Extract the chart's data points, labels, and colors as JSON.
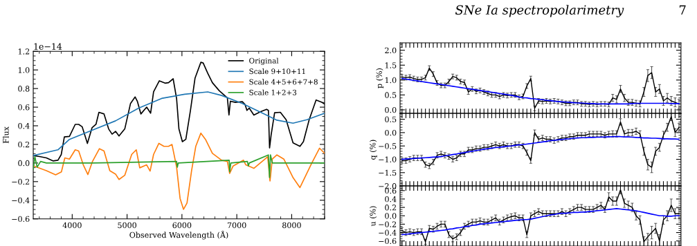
{
  "chart_data": [
    {
      "type": "line",
      "xlabel": "Observed Wavelength (Å)",
      "ylabel": "Flux",
      "xlim": [
        3290,
        8600
      ],
      "ylim": [
        -0.6,
        1.2
      ],
      "xticks": [
        4000,
        5000,
        6000,
        7000,
        8000
      ],
      "yticks": [
        -0.6,
        -0.4,
        -0.2,
        {
          "value": 0,
          "label": "0.0"
        },
        0.2,
        0.4,
        0.6,
        0.8,
        {
          "value": 1,
          "label": "1.0"
        },
        1.2
      ],
      "grid": false,
      "legend": "top right",
      "marker": "none",
      "line_style": "solid",
      "annotations": [
        "1e−14",
        "SNe Ia spectropolarimetry",
        "7"
      ],
      "series": [
        {
          "name": "Original",
          "color": "#000000",
          "x": [
            3290,
            3403,
            3530,
            3655,
            3740,
            3800,
            3857,
            3950,
            4055,
            4118,
            4181,
            4277,
            4361,
            4433,
            4487,
            4580,
            4664,
            4727,
            4790,
            4853,
            4958,
            5063,
            5147,
            5189,
            5252,
            5357,
            5429,
            5483,
            5588,
            5693,
            5756,
            5840,
            5903,
            5945,
            6008,
            6071,
            6155,
            6239,
            6345,
            6387,
            6471,
            6555,
            6681,
            6828,
            6857,
            6883,
            6975,
            7101,
            7151,
            7185,
            7227,
            7311,
            7437,
            7542,
            7576,
            7597,
            7626,
            7689,
            7794,
            7899,
            8025,
            8151,
            8214,
            8319,
            8445,
            8550,
            8600
          ],
          "values": [
            0.08,
            0.07,
            0.055,
            0.022,
            0.03,
            0.09,
            0.28,
            0.286,
            0.415,
            0.415,
            0.39,
            0.21,
            0.378,
            0.415,
            0.545,
            0.527,
            0.366,
            0.31,
            0.34,
            0.29,
            0.366,
            0.64,
            0.71,
            0.66,
            0.527,
            0.6,
            0.535,
            0.764,
            0.883,
            0.858,
            0.863,
            0.905,
            0.69,
            0.366,
            0.229,
            0.254,
            0.565,
            0.913,
            1.082,
            1.075,
            0.963,
            0.863,
            0.776,
            0.7,
            0.515,
            0.664,
            0.652,
            0.659,
            0.627,
            0.565,
            0.59,
            0.515,
            0.552,
            0.577,
            0.565,
            0.162,
            0.303,
            0.54,
            0.545,
            0.465,
            0.216,
            0.179,
            0.229,
            0.465,
            0.677,
            0.652,
            0.634
          ]
        },
        {
          "name": "Scale 9+10+11",
          "color": "#1f77b4",
          "x": [
            3290,
            3740,
            3950,
            4370,
            4790,
            5210,
            5630,
            6050,
            6471,
            6723,
            7101,
            7521,
            7731,
            8025,
            8277,
            8600
          ],
          "values": [
            0.08,
            0.142,
            0.254,
            0.353,
            0.453,
            0.59,
            0.694,
            0.739,
            0.764,
            0.726,
            0.639,
            0.52,
            0.46,
            0.428,
            0.465,
            0.535
          ]
        },
        {
          "name": "Scale 4+5+6+7+8",
          "color": "#ff7f0e",
          "x": [
            3290,
            3530,
            3698,
            3803,
            3866,
            3950,
            4055,
            4118,
            4202,
            4286,
            4370,
            4496,
            4580,
            4685,
            4790,
            4853,
            4958,
            5084,
            5168,
            5231,
            5357,
            5420,
            5483,
            5580,
            5672,
            5756,
            5819,
            5903,
            5966,
            6029,
            6092,
            6176,
            6252,
            6345,
            6429,
            6555,
            6723,
            6828,
            6870,
            6933,
            7122,
            7164,
            7311,
            7563,
            7605,
            7647,
            7731,
            7857,
            8025,
            8151,
            8361,
            8508,
            8600
          ],
          "values": [
            -0.03,
            -0.082,
            -0.127,
            -0.095,
            0.055,
            0.042,
            0.142,
            0.129,
            -0.02,
            -0.124,
            0.017,
            0.154,
            0.129,
            -0.082,
            -0.119,
            -0.177,
            -0.132,
            0.092,
            0.142,
            -0.052,
            -0.02,
            -0.087,
            0.092,
            0.211,
            0.179,
            0.179,
            0.199,
            -0.045,
            -0.381,
            -0.498,
            -0.43,
            -0.082,
            0.179,
            0.321,
            0.254,
            0.104,
            0.03,
            0.017,
            -0.112,
            -0.032,
            0.03,
            -0.02,
            -0.057,
            0.067,
            -0.194,
            0.042,
            0.087,
            0.042,
            -0.157,
            -0.264,
            -0.007,
            0.159,
            0.104
          ]
        },
        {
          "name": "Scale 1+2+3",
          "color": "#2ca02c",
          "x": [
            3290,
            3320,
            3361,
            3424,
            3530,
            4370,
            5903,
            5916,
            5933,
            6861,
            6870,
            6891,
            7193,
            7210,
            7227,
            7576,
            7597,
            7614,
            7647,
            8600
          ],
          "values": [
            -0.07,
            0.067,
            -0.045,
            0.017,
            0.0,
            0.0,
            0.017,
            -0.045,
            0.0,
            0.03,
            -0.094,
            0.0,
            0.017,
            -0.032,
            0.0,
            0.087,
            -0.157,
            0.087,
            0.0,
            0.0
          ]
        }
      ]
    },
    {
      "type": "line",
      "ylabel": "p (%)",
      "ylim": [
        -0.12,
        2.25
      ],
      "yticks": [
        {
          "value": 0,
          "label": "0.0"
        },
        0.5,
        {
          "value": 1,
          "label": "1.0"
        },
        1.5,
        {
          "value": 2,
          "label": "2.0"
        }
      ],
      "tick_labels": "y",
      "grid": false,
      "marker": "none",
      "line_style": "solid",
      "categories": [
        null,
        null,
        null,
        null,
        null,
        null,
        null,
        null,
        null,
        null,
        null,
        null,
        null,
        null,
        null,
        null,
        null,
        null,
        null,
        null,
        null,
        null,
        null,
        null,
        null,
        null,
        null,
        null,
        null,
        null,
        null,
        null,
        null,
        null,
        null,
        null,
        null,
        null,
        null,
        null,
        null,
        null,
        null,
        null,
        null,
        null,
        null,
        null,
        null,
        null,
        null,
        null,
        null,
        null,
        null,
        null,
        null,
        null,
        null,
        null,
        null,
        null,
        null,
        null,
        null,
        null,
        null,
        null,
        null,
        null,
        null,
        null
      ],
      "series": [
        {
          "color": "#000000",
          "values": [
            1.1,
            1.08,
            1.1,
            1.05,
            1.02,
            1.02,
            1.08,
            1.4,
            1.2,
            0.9,
            0.82,
            0.82,
            0.95,
            1.12,
            1.08,
            0.95,
            0.92,
            0.6,
            0.7,
            0.62,
            0.65,
            0.6,
            0.55,
            0.5,
            0.5,
            0.45,
            0.5,
            0.48,
            0.5,
            0.5,
            0.42,
            0.45,
            0.8,
            1.05,
            0.05,
            0.3,
            0.28,
            0.3,
            0.28,
            0.3,
            0.28,
            0.25,
            0.22,
            0.22,
            0.25,
            0.25,
            0.2,
            0.2,
            0.18,
            0.2,
            0.18,
            0.2,
            0.2,
            0.18,
            0.4,
            0.35,
            0.7,
            0.4,
            0.25,
            0.25,
            0.22,
            0.2,
            0.6,
            1.15,
            1.25,
            0.6,
            0.7,
            0.3,
            0.4,
            0.3,
            0.25,
            0.2
          ],
          "errors": [
            0.08,
            0.08,
            0.08,
            0.08,
            0.08,
            0.08,
            0.08,
            0.08,
            0.08,
            0.08,
            0.08,
            0.08,
            0.08,
            0.08,
            0.08,
            0.08,
            0.08,
            0.08,
            0.08,
            0.08,
            0.08,
            0.08,
            0.08,
            0.08,
            0.08,
            0.08,
            0.08,
            0.08,
            0.08,
            0.08,
            0.08,
            0.08,
            0.08,
            0.08,
            0.08,
            0.08,
            0.08,
            0.08,
            0.08,
            0.08,
            0.08,
            0.08,
            0.08,
            0.08,
            0.08,
            0.08,
            0.08,
            0.08,
            0.08,
            0.08,
            0.08,
            0.08,
            0.08,
            0.08,
            0.12,
            0.12,
            0.12,
            0.12,
            0.1,
            0.1,
            0.1,
            0.1,
            0.15,
            0.2,
            0.2,
            0.15,
            0.15,
            0.15,
            0.15,
            0.15,
            0.15,
            0.15
          ]
        },
        {
          "color": "#0000ff",
          "values": [
            1.05,
            1.03,
            1.01,
            0.99,
            0.97,
            0.95,
            0.93,
            0.91,
            0.89,
            0.87,
            0.85,
            0.83,
            0.81,
            0.79,
            0.77,
            0.75,
            0.73,
            0.71,
            0.69,
            0.67,
            0.65,
            0.63,
            0.61,
            0.59,
            0.57,
            0.55,
            0.53,
            0.51,
            0.49,
            0.46,
            0.43,
            0.41,
            0.4,
            0.38,
            0.37,
            0.35,
            0.34,
            0.32,
            0.31,
            0.29,
            0.28,
            0.27,
            0.26,
            0.25,
            0.24,
            0.23,
            0.23,
            0.22,
            0.21,
            0.21,
            0.2,
            0.2,
            0.2,
            0.2,
            0.2,
            0.2,
            0.2,
            0.2,
            0.2,
            0.21,
            0.22,
            0.22,
            0.22,
            0.22,
            0.22,
            0.22,
            0.22,
            0.22,
            0.22,
            0.21,
            0.21,
            0.21
          ]
        }
      ]
    },
    {
      "type": "line",
      "ylabel": "q (%)",
      "ylim": [
        -2.0,
        0.72
      ],
      "yticks": [
        {
          "value": -2,
          "label": "−2.0"
        },
        -1.5,
        {
          "value": -1,
          "label": "−1.0"
        },
        -0.5,
        {
          "value": 0,
          "label": "0.0"
        },
        0.5
      ],
      "tick_labels": "y",
      "grid": false,
      "marker": "none",
      "line_style": "solid",
      "categories": [
        null,
        null,
        null,
        null,
        null,
        null,
        null,
        null,
        null,
        null,
        null,
        null,
        null,
        null,
        null,
        null,
        null,
        null,
        null,
        null,
        null,
        null,
        null,
        null,
        null,
        null,
        null,
        null,
        null,
        null,
        null,
        null,
        null,
        null,
        null,
        null,
        null,
        null,
        null,
        null,
        null,
        null,
        null,
        null,
        null,
        null,
        null,
        null,
        null,
        null,
        null,
        null,
        null,
        null,
        null,
        null,
        null,
        null,
        null,
        null,
        null,
        null,
        null,
        null,
        null,
        null,
        null,
        null,
        null,
        null,
        null,
        null
      ],
      "series": [
        {
          "color": "#000000",
          "values": [
            -1.05,
            -1.05,
            -1.0,
            -0.95,
            -0.95,
            -0.95,
            -1.2,
            -1.25,
            -1.1,
            -0.85,
            -0.8,
            -0.85,
            -0.9,
            -1.0,
            -0.95,
            -0.8,
            -0.8,
            -0.65,
            -0.65,
            -0.6,
            -0.6,
            -0.55,
            -0.55,
            -0.5,
            -0.45,
            -0.5,
            -0.45,
            -0.5,
            -0.5,
            -0.45,
            -0.45,
            -0.5,
            -0.75,
            -1.05,
            0.0,
            -0.25,
            -0.2,
            -0.25,
            -0.25,
            -0.3,
            -0.25,
            -0.2,
            -0.2,
            -0.15,
            -0.15,
            -0.1,
            -0.1,
            -0.1,
            -0.05,
            -0.05,
            -0.05,
            -0.05,
            -0.1,
            -0.05,
            -0.05,
            -0.05,
            0.4,
            -0.05,
            0.0,
            0.0,
            0.05,
            -0.05,
            -0.7,
            -1.2,
            -1.3,
            -0.7,
            -0.55,
            -0.1,
            0.2,
            0.6,
            0.0,
            0.2
          ],
          "errors": [
            0.1,
            0.1,
            0.1,
            0.1,
            0.1,
            0.1,
            0.1,
            0.1,
            0.1,
            0.1,
            0.1,
            0.1,
            0.1,
            0.1,
            0.1,
            0.1,
            0.1,
            0.1,
            0.1,
            0.1,
            0.1,
            0.1,
            0.1,
            0.1,
            0.1,
            0.1,
            0.1,
            0.1,
            0.1,
            0.1,
            0.1,
            0.1,
            0.1,
            0.1,
            0.1,
            0.1,
            0.1,
            0.1,
            0.1,
            0.1,
            0.1,
            0.1,
            0.1,
            0.1,
            0.1,
            0.1,
            0.1,
            0.1,
            0.1,
            0.1,
            0.1,
            0.1,
            0.1,
            0.1,
            0.12,
            0.12,
            0.12,
            0.12,
            0.12,
            0.12,
            0.12,
            0.12,
            0.15,
            0.2,
            0.2,
            0.15,
            0.15,
            0.15,
            0.15,
            0.15,
            0.15,
            0.15
          ]
        },
        {
          "color": "#0000ff",
          "values": [
            -1.0,
            -0.99,
            -0.98,
            -0.97,
            -0.96,
            -0.95,
            -0.94,
            -0.93,
            -0.92,
            -0.91,
            -0.9,
            -0.87,
            -0.85,
            -0.82,
            -0.8,
            -0.77,
            -0.75,
            -0.72,
            -0.7,
            -0.67,
            -0.65,
            -0.62,
            -0.6,
            -0.58,
            -0.56,
            -0.55,
            -0.53,
            -0.51,
            -0.5,
            -0.48,
            -0.46,
            -0.45,
            -0.43,
            -0.41,
            -0.39,
            -0.37,
            -0.35,
            -0.33,
            -0.3,
            -0.29,
            -0.27,
            -0.26,
            -0.24,
            -0.23,
            -0.21,
            -0.2,
            -0.19,
            -0.19,
            -0.18,
            -0.18,
            -0.17,
            -0.17,
            -0.16,
            -0.16,
            -0.15,
            -0.15,
            -0.15,
            -0.16,
            -0.16,
            -0.17,
            -0.18,
            -0.19,
            -0.2,
            -0.2,
            -0.21,
            -0.21,
            -0.22,
            -0.23,
            -0.23,
            -0.24,
            -0.24,
            -0.25
          ]
        }
      ]
    },
    {
      "type": "line",
      "ylabel": "u (%)",
      "ylim": [
        -0.72,
        0.71
      ],
      "yticks": [
        -0.6,
        -0.4,
        -0.2,
        {
          "value": 0,
          "label": "0.0"
        },
        0.2,
        0.4,
        0.6
      ],
      "tick_labels": "y",
      "grid": false,
      "marker": "none",
      "line_style": "solid",
      "categories": [
        null,
        null,
        null,
        null,
        null,
        null,
        null,
        null,
        null,
        null,
        null,
        null,
        null,
        null,
        null,
        null,
        null,
        null,
        null,
        null,
        null,
        null,
        null,
        null,
        null,
        null,
        null,
        null,
        null,
        null,
        null,
        null,
        null,
        null,
        null,
        null,
        null,
        null,
        null,
        null,
        null,
        null,
        null,
        null,
        null,
        null,
        null,
        null,
        null,
        null,
        null,
        null,
        null,
        null,
        null,
        null,
        null,
        null,
        null,
        null,
        null,
        null,
        null,
        null,
        null,
        null,
        null,
        null,
        null,
        null,
        null,
        null
      ],
      "series": [
        {
          "color": "#000000",
          "values": [
            -0.35,
            -0.4,
            -0.38,
            -0.4,
            -0.38,
            -0.38,
            -0.62,
            -0.3,
            -0.32,
            -0.25,
            -0.2,
            -0.2,
            -0.45,
            -0.55,
            -0.5,
            -0.4,
            -0.25,
            -0.2,
            -0.15,
            -0.15,
            -0.12,
            -0.15,
            -0.15,
            -0.1,
            -0.05,
            -0.15,
            -0.1,
            -0.05,
            -0.02,
            0.0,
            -0.05,
            -0.05,
            -0.45,
            0.0,
            0.05,
            0.1,
            0.05,
            0.05,
            0.05,
            0.05,
            0.05,
            0.1,
            0.05,
            0.1,
            0.15,
            0.2,
            0.2,
            0.15,
            0.15,
            0.15,
            0.2,
            0.25,
            0.15,
            0.45,
            0.35,
            0.35,
            0.62,
            0.3,
            0.25,
            0.2,
            0.0,
            -0.1,
            -0.62,
            -0.5,
            -0.4,
            -0.3,
            -0.6,
            -0.1,
            0.0,
            0.25,
            0.05,
            0.05
          ],
          "errors": [
            0.07,
            0.07,
            0.07,
            0.07,
            0.07,
            0.07,
            0.06,
            0.07,
            0.07,
            0.07,
            0.07,
            0.07,
            0.07,
            0.07,
            0.07,
            0.07,
            0.07,
            0.07,
            0.07,
            0.07,
            0.07,
            0.07,
            0.07,
            0.07,
            0.07,
            0.07,
            0.07,
            0.07,
            0.07,
            0.07,
            0.07,
            0.07,
            0.07,
            0.07,
            0.07,
            0.07,
            0.07,
            0.07,
            0.07,
            0.07,
            0.07,
            0.07,
            0.07,
            0.07,
            0.07,
            0.07,
            0.07,
            0.07,
            0.07,
            0.07,
            0.07,
            0.07,
            0.07,
            0.1,
            0.1,
            0.1,
            0.1,
            0.1,
            0.1,
            0.1,
            0.1,
            0.1,
            0.12,
            0.08,
            0.15,
            0.12,
            0.15,
            0.1,
            0.12,
            0.15,
            0.12,
            0.12
          ]
        },
        {
          "color": "#0000ff",
          "values": [
            -0.45,
            -0.44,
            -0.43,
            -0.42,
            -0.41,
            -0.4,
            -0.39,
            -0.38,
            -0.37,
            -0.36,
            -0.35,
            -0.34,
            -0.32,
            -0.31,
            -0.29,
            -0.28,
            -0.26,
            -0.25,
            -0.23,
            -0.22,
            -0.2,
            -0.19,
            -0.18,
            -0.17,
            -0.16,
            -0.15,
            -0.14,
            -0.13,
            -0.12,
            -0.11,
            -0.1,
            -0.09,
            -0.09,
            -0.08,
            -0.06,
            -0.04,
            -0.02,
            0.0,
            0.02,
            0.03,
            0.05,
            0.06,
            0.06,
            0.07,
            0.08,
            0.08,
            0.09,
            0.09,
            0.1,
            0.11,
            0.12,
            0.13,
            0.14,
            0.15,
            0.16,
            0.17,
            0.16,
            0.15,
            0.14,
            0.13,
            0.12,
            0.1,
            0.08,
            0.06,
            0.04,
            0.02,
            0.0,
            0.0,
            -0.01,
            -0.01,
            0.0,
            0.0
          ]
        }
      ]
    }
  ]
}
